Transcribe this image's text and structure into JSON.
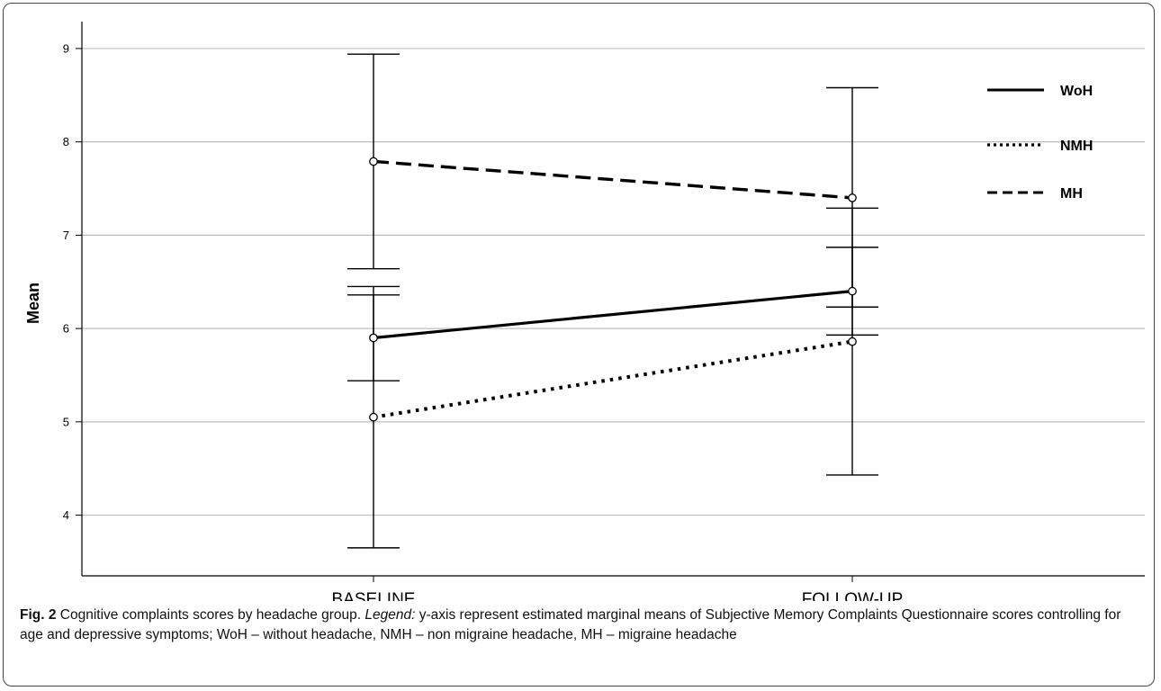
{
  "chart_data": {
    "type": "line",
    "categories": [
      "BASELINE",
      "FOLLOW-UP"
    ],
    "ylabel": "Mean",
    "xlabel": "",
    "ylim": [
      3.35,
      9.25
    ],
    "yticks": [
      4,
      5,
      6,
      7,
      8,
      9
    ],
    "grid": "horizontal",
    "legend_position": "top-right",
    "series": [
      {
        "name": "WoH",
        "style": "solid",
        "values": [
          5.9,
          6.4
        ],
        "ci_low": [
          5.44,
          5.93
        ],
        "ci_high": [
          6.36,
          6.87
        ]
      },
      {
        "name": "NMH",
        "style": "dotted",
        "values": [
          5.05,
          5.86
        ],
        "ci_low": [
          3.65,
          4.43
        ],
        "ci_high": [
          6.45,
          7.29
        ]
      },
      {
        "name": "MH",
        "style": "dashed",
        "values": [
          7.79,
          7.4
        ],
        "ci_low": [
          6.64,
          6.23
        ],
        "ci_high": [
          8.94,
          8.58
        ]
      }
    ]
  },
  "caption": {
    "figure_label": "Fig. 2",
    "title_text": " Cognitive complaints scores by headache group. ",
    "legend_label": "Legend:",
    "body_text": " y-axis represent estimated marginal means of Subjective Memory Complaints Questionnaire scores controlling for age and depressive symptoms; WoH – without headache, NMH – non migraine headache, MH – migraine headache"
  },
  "colors": {
    "line": "#000000",
    "grid": "#bdbdbd",
    "axis": "#000000"
  }
}
